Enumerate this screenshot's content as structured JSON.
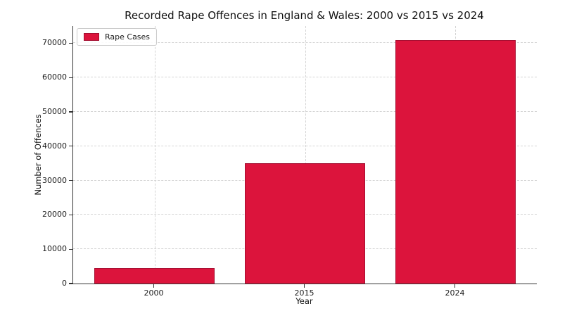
{
  "chart_data": {
    "type": "bar",
    "title": "Recorded Rape Offences in England & Wales: 2000 vs 2015 vs 2024",
    "xlabel": "Year",
    "ylabel": "Number of Offences",
    "categories": [
      "2000",
      "2015",
      "2024"
    ],
    "series": [
      {
        "name": "Rape Cases",
        "values": [
          4600,
          35000,
          71000
        ]
      }
    ],
    "ylim": [
      0,
      75000
    ],
    "yticks": [
      0,
      10000,
      20000,
      30000,
      40000,
      50000,
      60000,
      70000
    ],
    "grid": "dashed, both axes, behind bars",
    "legend": {
      "position": "upper left",
      "entries": [
        "Rape Cases"
      ]
    },
    "colors": {
      "bar": "#DC143C",
      "bar_edge": "#a50f31",
      "grid": "#d4d4d4",
      "spine": "#333333",
      "text": "#1a1a1a",
      "background": "#ffffff"
    }
  }
}
